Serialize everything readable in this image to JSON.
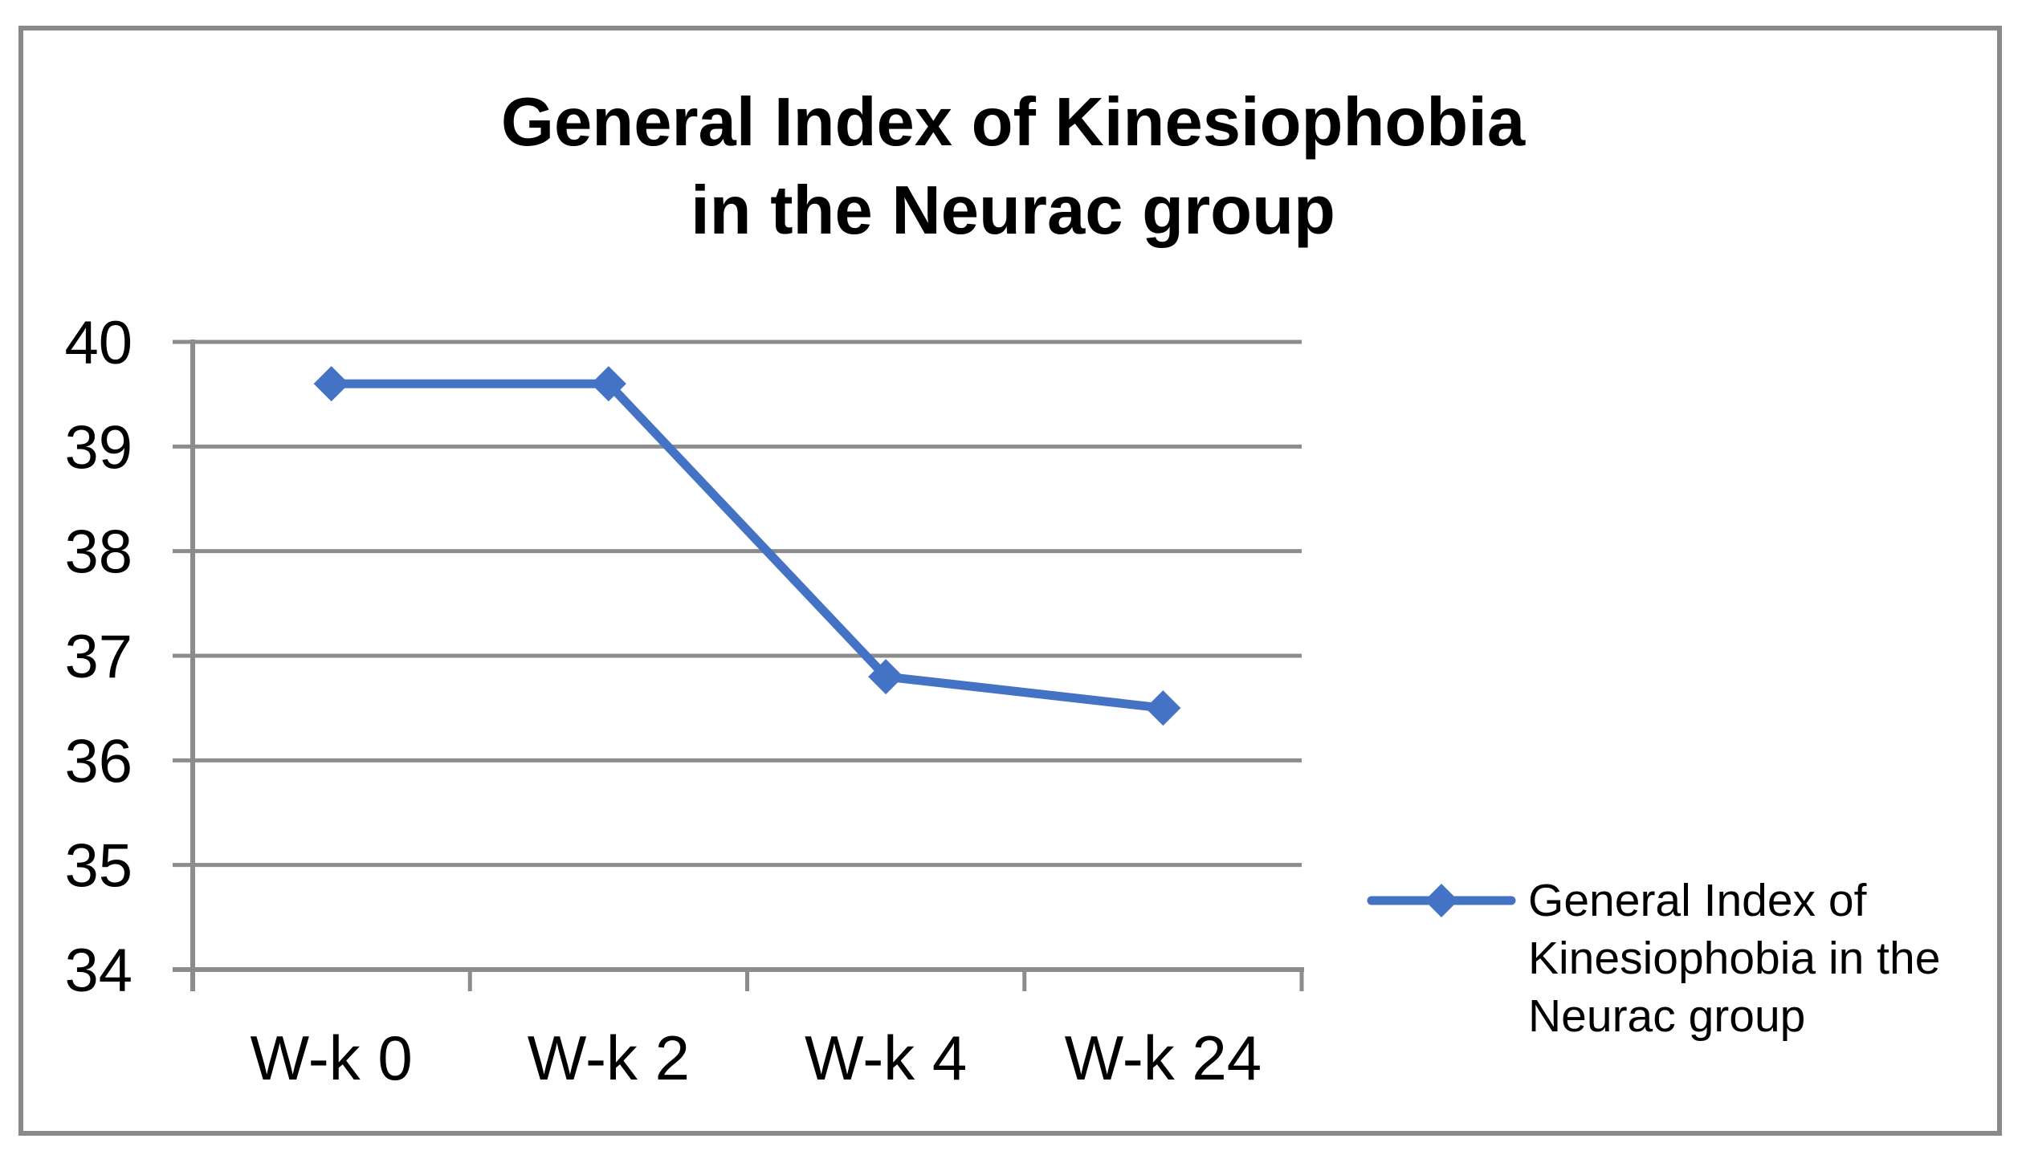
{
  "title": {
    "text": "General Index of Kinesiophobia in the Neurac group"
  },
  "chart_data": {
    "type": "line",
    "title": "General Index of Kinesiophobia in the Neurac group",
    "title_lines": [
      "General Index of Kinesiophobia",
      "in the Neurac group"
    ],
    "categories": [
      "W-k 0",
      "W-k 2",
      "W-k 4",
      "W-k 24"
    ],
    "series": [
      {
        "name": "General Index of Kinesiophobia in the Neurac group",
        "values": [
          39.6,
          39.6,
          36.8,
          36.5
        ],
        "color": "#4472C4",
        "marker": "diamond"
      }
    ],
    "xlabel": "",
    "ylabel": "",
    "ylim": [
      34,
      40
    ],
    "yticks": [
      34,
      35,
      36,
      37,
      38,
      39,
      40
    ],
    "grid": true,
    "legend_position": "right",
    "legend_lines": [
      "General Index of",
      "Kinesiophobia in the",
      "Neurac group"
    ]
  },
  "colors": {
    "line": "#4472C4",
    "gridline": "#8C8C8C",
    "axis": "#8C8C8C",
    "border": "#898989",
    "text": "#000000",
    "background": "#FFFFFF"
  }
}
